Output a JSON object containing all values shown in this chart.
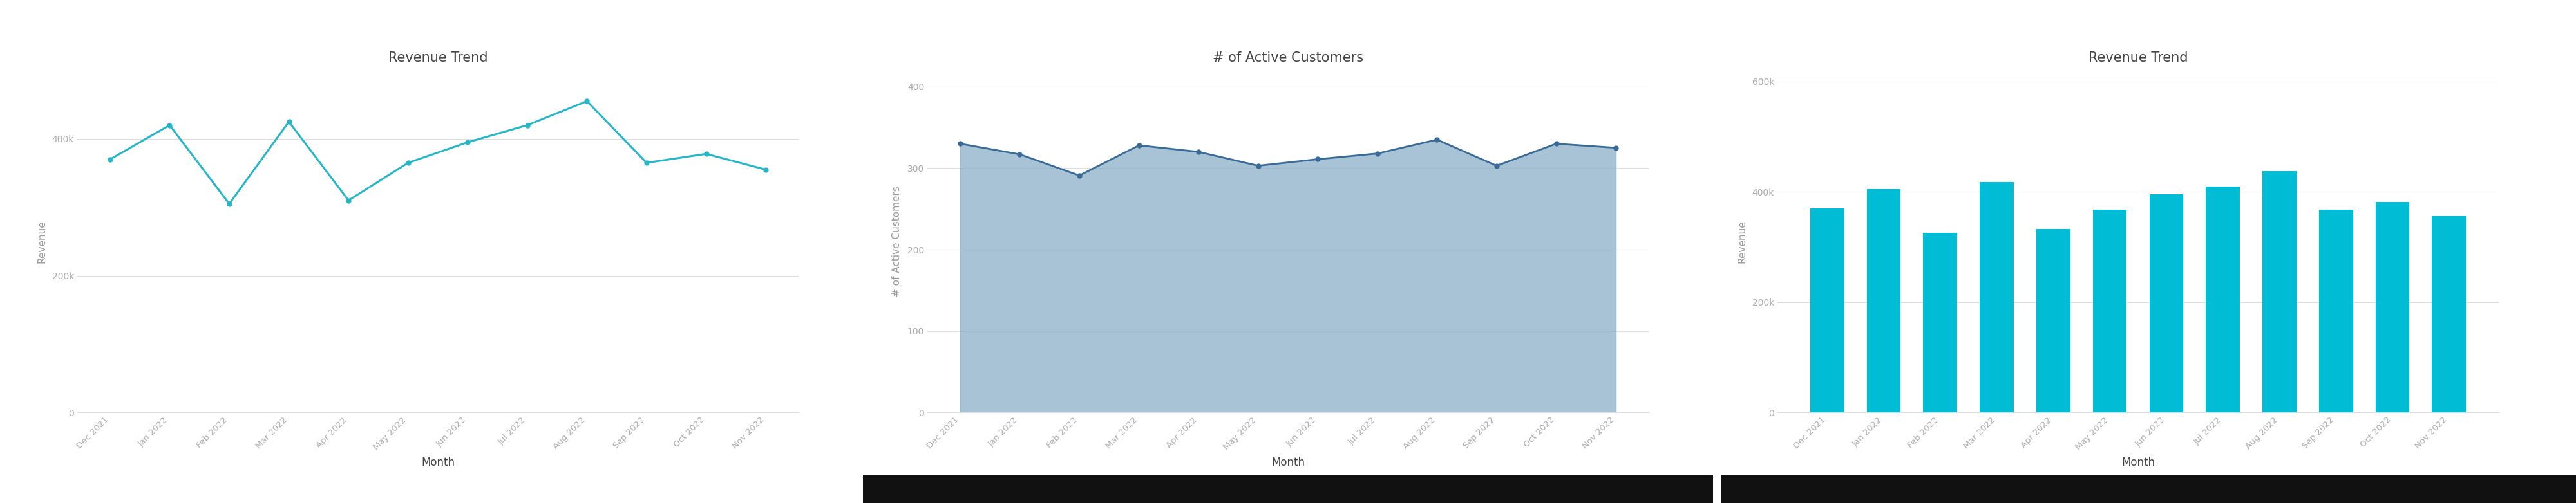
{
  "months": [
    "Dec 2021",
    "Jan 2022",
    "Feb 2022",
    "Mar 2022",
    "Apr 2022",
    "May 2022",
    "Jun 2022",
    "Jul 2022",
    "Aug 2022",
    "Sep 2022",
    "Oct 2022",
    "Nov 2022"
  ],
  "revenue_line": [
    370000,
    420000,
    305000,
    425000,
    310000,
    365000,
    395000,
    420000,
    455000,
    365000,
    378000,
    355000
  ],
  "active_customers": [
    330,
    317,
    291,
    328,
    320,
    303,
    311,
    318,
    335,
    303,
    330,
    325
  ],
  "revenue_bar": [
    370000,
    405000,
    325000,
    418000,
    333000,
    368000,
    396000,
    410000,
    437000,
    368000,
    382000,
    356000
  ],
  "chart1_title": "Revenue Trend",
  "chart2_title": "# of Active Customers",
  "chart3_title": "Revenue Trend",
  "chart1_ylabel": "Revenue",
  "chart2_ylabel": "# of Active Customers",
  "chart3_ylabel": "Revenue",
  "xlabel": "Month",
  "line_color": "#29b5c8",
  "area_line_color": "#3a6b96",
  "area_fill_color": "#8aafc8",
  "bar_color": "#00bcd4",
  "bg_color": "#ffffff",
  "panel_bg": "#f9f9f9",
  "grid_color": "#dddddd",
  "tick_color": "#aaaaaa",
  "title_color": "#444444",
  "label_color": "#999999",
  "black_bar_color": "#111111",
  "chart1_ylim": [
    0,
    500000
  ],
  "chart2_ylim": [
    0,
    420
  ],
  "chart3_ylim": [
    0,
    620000
  ],
  "chart1_yticks": [
    0,
    200000,
    400000
  ],
  "chart2_yticks": [
    0,
    100,
    200,
    300,
    400
  ],
  "chart3_yticks": [
    0,
    200000,
    400000,
    600000
  ]
}
